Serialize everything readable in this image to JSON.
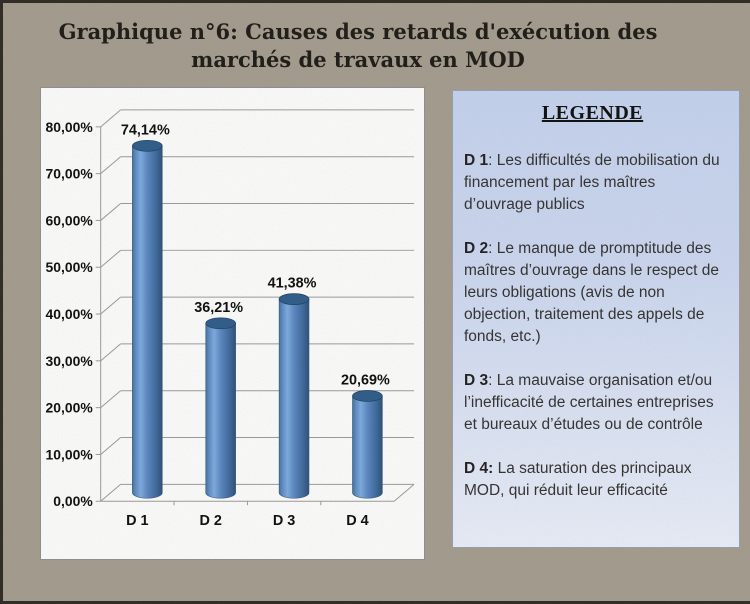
{
  "page": {
    "title": {
      "line1": "Graphique n°6: Causes des retards d'exécution des",
      "line2": "marchés de travaux en MOD"
    }
  },
  "chart_data": {
    "type": "bar",
    "subtype": "3d-cylinder",
    "title": "Graphique n°6: Causes des retards d'exécution des marchés de travaux en MOD",
    "categories": [
      "D 1",
      "D 2",
      "D 3",
      "D 4"
    ],
    "values": [
      74.14,
      36.21,
      41.38,
      20.69
    ],
    "value_labels": [
      "74,14%",
      "36,21%",
      "41,38%",
      "20,69%"
    ],
    "xlabel": "",
    "ylabel": "",
    "y_axis": {
      "min": 0,
      "max": 80,
      "step": 10,
      "tick_labels": [
        "0,00%",
        "10,00%",
        "20,00%",
        "30,00%",
        "40,00%",
        "50,00%",
        "60,00%",
        "70,00%",
        "80,00%"
      ]
    },
    "grid": true,
    "legend_position": "none",
    "bar_color": "#4f81bd",
    "bar_top_color": "#2e5c8b",
    "gridline_color": "#9b9b9b",
    "label_color": "#0d0d0d"
  },
  "legend_panel": {
    "title": "LEGENDE",
    "items": [
      {
        "term": "D 1",
        "sep": ": ",
        "text": "Les difficultés de mobilisation du financement par les maîtres d’ouvrage publics"
      },
      {
        "term": "D 2",
        "sep": ": ",
        "text": "Le manque de promptitude des maîtres d’ouvrage dans le respect de leurs obligations (avis de non objection, traitement des appels de fonds, etc.)"
      },
      {
        "term": "D 3",
        "sep": ": ",
        "text": "La mauvaise organisation et/ou l’inefficacité de certaines entreprises et bureaux d’études ou de contrôle"
      },
      {
        "term": "D 4:",
        "sep": " ",
        "text": "La saturation des principaux MOD, qui réduit leur efficacité"
      }
    ]
  },
  "colors": {
    "page_background": "#a49c8e",
    "chart_panel_background": "#fdfdfd",
    "panel_border": "#8f8f8f",
    "legend_background_top": "#c5d3ef",
    "legend_background_bottom": "#e9eef9",
    "legend_border": "#95a0b4",
    "title_text": "#1d1b17",
    "page_edge": "#2e2a24"
  }
}
